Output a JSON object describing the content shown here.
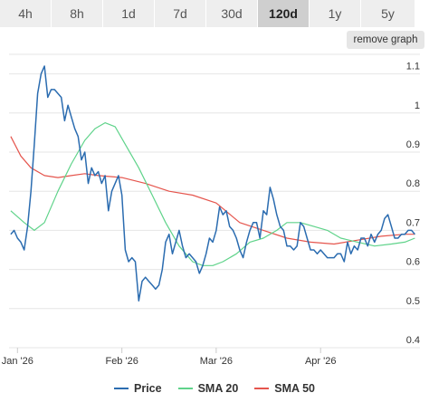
{
  "tabs": [
    {
      "label": "4h",
      "active": false
    },
    {
      "label": "8h",
      "active": false
    },
    {
      "label": "1d",
      "active": false
    },
    {
      "label": "7d",
      "active": false
    },
    {
      "label": "30d",
      "active": false
    },
    {
      "label": "120d",
      "active": true
    },
    {
      "label": "1y",
      "active": false
    },
    {
      "label": "5y",
      "active": false
    }
  ],
  "remove_graph_label": "remove graph",
  "colors": {
    "price": "#2b6cb0",
    "sma20": "#5fd38a",
    "sma50": "#e5554d",
    "grid": "#e6e6e6"
  },
  "chart_data": {
    "type": "line",
    "xlabel": "",
    "ylabel": "",
    "ylim": [
      0.4,
      1.15
    ],
    "y_ticks": [
      0.4,
      0.5,
      0.6,
      0.7,
      0.8,
      0.9,
      1,
      1.1
    ],
    "y_tick_labels": [
      "0.4",
      "0.5",
      "0.6",
      "0.7",
      "0.8",
      "0.9",
      "1",
      "1.1"
    ],
    "x_range": [
      "2026-01-01",
      "2026-04-30"
    ],
    "x_ticks": [
      "2026-01-01",
      "2026-02-01",
      "2026-03-01",
      "2026-04-01"
    ],
    "x_tick_labels": [
      "Jan '26",
      "Feb '26",
      "Mar '26",
      "Apr '26"
    ],
    "grid": true,
    "legend_position": "bottom",
    "series": [
      {
        "name": "Price",
        "x": [
          "2025-12-30",
          "2025-12-31",
          "2026-01-01",
          "2026-01-02",
          "2026-01-03",
          "2026-01-04",
          "2026-01-05",
          "2026-01-06",
          "2026-01-07",
          "2026-01-08",
          "2026-01-09",
          "2026-01-10",
          "2026-01-11",
          "2026-01-12",
          "2026-01-13",
          "2026-01-14",
          "2026-01-15",
          "2026-01-16",
          "2026-01-17",
          "2026-01-18",
          "2026-01-19",
          "2026-01-20",
          "2026-01-21",
          "2026-01-22",
          "2026-01-23",
          "2026-01-24",
          "2026-01-25",
          "2026-01-26",
          "2026-01-27",
          "2026-01-28",
          "2026-01-29",
          "2026-01-30",
          "2026-01-31",
          "2026-02-01",
          "2026-02-02",
          "2026-02-03",
          "2026-02-04",
          "2026-02-05",
          "2026-02-06",
          "2026-02-07",
          "2026-02-08",
          "2026-02-09",
          "2026-02-10",
          "2026-02-11",
          "2026-02-12",
          "2026-02-13",
          "2026-02-14",
          "2026-02-15",
          "2026-02-16",
          "2026-02-17",
          "2026-02-18",
          "2026-02-19",
          "2026-02-20",
          "2026-02-21",
          "2026-02-22",
          "2026-02-23",
          "2026-02-24",
          "2026-02-25",
          "2026-02-26",
          "2026-02-27",
          "2026-02-28",
          "2026-03-01",
          "2026-03-02",
          "2026-03-03",
          "2026-03-04",
          "2026-03-05",
          "2026-03-06",
          "2026-03-07",
          "2026-03-08",
          "2026-03-09",
          "2026-03-10",
          "2026-03-11",
          "2026-03-12",
          "2026-03-13",
          "2026-03-14",
          "2026-03-15",
          "2026-03-16",
          "2026-03-17",
          "2026-03-18",
          "2026-03-19",
          "2026-03-20",
          "2026-03-21",
          "2026-03-22",
          "2026-03-23",
          "2026-03-24",
          "2026-03-25",
          "2026-03-26",
          "2026-03-27",
          "2026-03-28",
          "2026-03-29",
          "2026-03-30",
          "2026-03-31",
          "2026-04-01",
          "2026-04-02",
          "2026-04-03",
          "2026-04-04",
          "2026-04-05",
          "2026-04-06",
          "2026-04-07",
          "2026-04-08",
          "2026-04-09",
          "2026-04-10",
          "2026-04-11",
          "2026-04-12",
          "2026-04-13",
          "2026-04-14",
          "2026-04-15",
          "2026-04-16",
          "2026-04-17",
          "2026-04-18",
          "2026-04-19",
          "2026-04-20",
          "2026-04-21",
          "2026-04-22",
          "2026-04-23",
          "2026-04-24",
          "2026-04-25",
          "2026-04-26",
          "2026-04-27",
          "2026-04-28",
          "2026-04-29"
        ],
        "values": [
          0.69,
          0.7,
          0.68,
          0.67,
          0.65,
          0.71,
          0.8,
          0.92,
          1.05,
          1.1,
          1.12,
          1.04,
          1.06,
          1.06,
          1.05,
          1.04,
          0.98,
          1.02,
          0.99,
          0.96,
          0.94,
          0.88,
          0.9,
          0.82,
          0.86,
          0.84,
          0.85,
          0.82,
          0.84,
          0.75,
          0.8,
          0.82,
          0.84,
          0.79,
          0.65,
          0.62,
          0.63,
          0.62,
          0.52,
          0.57,
          0.58,
          0.57,
          0.56,
          0.55,
          0.56,
          0.6,
          0.67,
          0.69,
          0.64,
          0.67,
          0.7,
          0.66,
          0.63,
          0.64,
          0.63,
          0.62,
          0.59,
          0.61,
          0.64,
          0.68,
          0.67,
          0.7,
          0.76,
          0.74,
          0.75,
          0.71,
          0.7,
          0.68,
          0.65,
          0.63,
          0.67,
          0.7,
          0.72,
          0.72,
          0.68,
          0.75,
          0.74,
          0.81,
          0.78,
          0.74,
          0.71,
          0.7,
          0.66,
          0.66,
          0.65,
          0.66,
          0.72,
          0.71,
          0.68,
          0.65,
          0.65,
          0.64,
          0.65,
          0.64,
          0.63,
          0.63,
          0.63,
          0.64,
          0.64,
          0.62,
          0.67,
          0.64,
          0.66,
          0.65,
          0.68,
          0.68,
          0.66,
          0.69,
          0.67,
          0.69,
          0.7,
          0.73,
          0.74,
          0.71,
          0.68,
          0.68,
          0.69,
          0.69,
          0.7,
          0.7,
          0.69
        ]
      },
      {
        "name": "SMA 20",
        "x": [
          "2025-12-30",
          "2026-01-03",
          "2026-01-06",
          "2026-01-09",
          "2026-01-13",
          "2026-01-17",
          "2026-01-21",
          "2026-01-24",
          "2026-01-27",
          "2026-01-30",
          "2026-02-02",
          "2026-02-06",
          "2026-02-10",
          "2026-02-14",
          "2026-02-18",
          "2026-02-22",
          "2026-02-25",
          "2026-02-28",
          "2026-03-03",
          "2026-03-07",
          "2026-03-11",
          "2026-03-15",
          "2026-03-19",
          "2026-03-22",
          "2026-03-26",
          "2026-03-30",
          "2026-04-03",
          "2026-04-07",
          "2026-04-12",
          "2026-04-17",
          "2026-04-22",
          "2026-04-26",
          "2026-04-29"
        ],
        "values": [
          0.75,
          0.72,
          0.7,
          0.72,
          0.8,
          0.87,
          0.93,
          0.96,
          0.975,
          0.965,
          0.92,
          0.86,
          0.79,
          0.72,
          0.66,
          0.62,
          0.61,
          0.61,
          0.62,
          0.64,
          0.67,
          0.68,
          0.7,
          0.72,
          0.72,
          0.71,
          0.7,
          0.68,
          0.67,
          0.66,
          0.665,
          0.67,
          0.68
        ]
      },
      {
        "name": "SMA 50",
        "x": [
          "2025-12-30",
          "2026-01-02",
          "2026-01-05",
          "2026-01-09",
          "2026-01-13",
          "2026-01-17",
          "2026-01-21",
          "2026-01-25",
          "2026-02-01",
          "2026-02-08",
          "2026-02-15",
          "2026-02-22",
          "2026-03-01",
          "2026-03-08",
          "2026-03-15",
          "2026-03-22",
          "2026-03-29",
          "2026-04-05",
          "2026-04-12",
          "2026-04-19",
          "2026-04-26",
          "2026-04-29"
        ],
        "values": [
          0.94,
          0.89,
          0.86,
          0.84,
          0.835,
          0.84,
          0.845,
          0.84,
          0.835,
          0.82,
          0.8,
          0.79,
          0.77,
          0.72,
          0.7,
          0.68,
          0.67,
          0.665,
          0.675,
          0.685,
          0.69,
          0.69
        ]
      }
    ]
  }
}
